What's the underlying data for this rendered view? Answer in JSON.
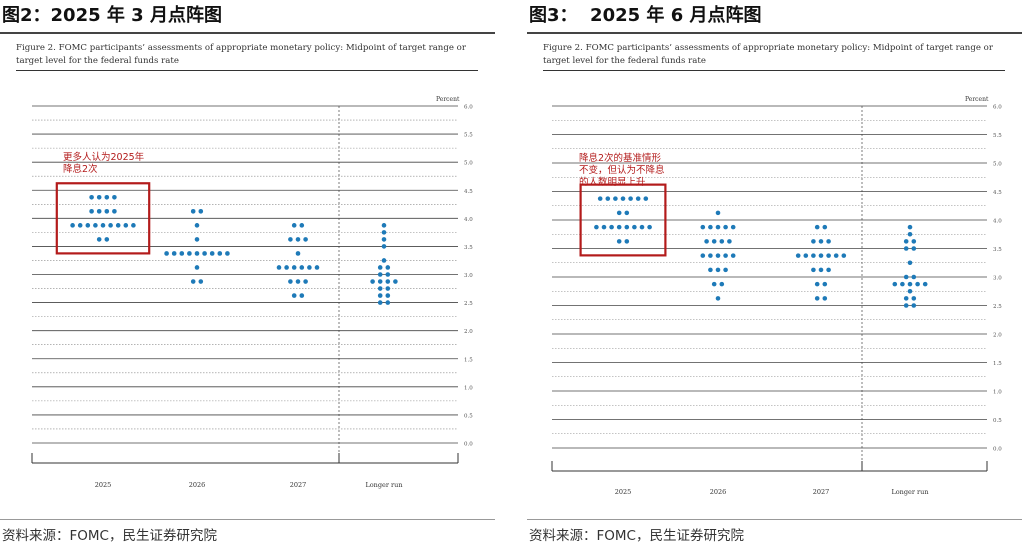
{
  "panels": [
    {
      "title": "图2：2025 年 3 月点阵图",
      "caption": "Figure 2.  FOMC participants’ assessments of appropriate monetary policy:  Midpoint of target range or target level for the federal funds rate",
      "annotation": [
        "更多人认为2025年",
        "降息2次"
      ],
      "source": "资料来源：FOMC，民生证券研究院"
    },
    {
      "title": "图3：  2025 年 6 月点阵图",
      "caption": "Figure 2.  FOMC participants’ assessments of appropriate monetary policy:  Midpoint of target range or target level for the federal funds rate",
      "annotation": [
        "降息2次的基准情形",
        "不变，但认为不降息",
        "的人数明显上升"
      ],
      "source": "资料来源：FOMC，民生证券研究院"
    }
  ],
  "chart_data": [
    {
      "type": "scatter",
      "ylabel": "Percent",
      "ylim": [
        0,
        6.0
      ],
      "yticks": [
        "0.0",
        "0.5",
        "1.0",
        "1.5",
        "2.0",
        "2.5",
        "3.0",
        "3.5",
        "4.0",
        "4.5",
        "5.0",
        "5.5",
        "6.0"
      ],
      "categories": [
        "2025",
        "2026",
        "2027",
        "Longer run"
      ],
      "dot_color": "#1e7ab8",
      "highlight": {
        "category": "2025",
        "box_color": "#b31b1b"
      },
      "series": [
        {
          "category": "2025",
          "points": [
            {
              "y": 4.375,
              "n": 4
            },
            {
              "y": 4.125,
              "n": 4
            },
            {
              "y": 3.875,
              "n": 9
            },
            {
              "y": 3.625,
              "n": 2
            }
          ]
        },
        {
          "category": "2026",
          "points": [
            {
              "y": 4.125,
              "n": 2
            },
            {
              "y": 3.875,
              "n": 1
            },
            {
              "y": 3.625,
              "n": 1
            },
            {
              "y": 3.375,
              "n": 9
            },
            {
              "y": 3.125,
              "n": 1
            },
            {
              "y": 2.875,
              "n": 2
            }
          ]
        },
        {
          "category": "2027",
          "points": [
            {
              "y": 3.875,
              "n": 2
            },
            {
              "y": 3.625,
              "n": 3
            },
            {
              "y": 3.375,
              "n": 1
            },
            {
              "y": 3.125,
              "n": 6
            },
            {
              "y": 2.875,
              "n": 3
            },
            {
              "y": 2.625,
              "n": 2
            }
          ]
        },
        {
          "category": "Longer run",
          "points": [
            {
              "y": 3.875,
              "n": 1
            },
            {
              "y": 3.75,
              "n": 1
            },
            {
              "y": 3.625,
              "n": 1
            },
            {
              "y": 3.5,
              "n": 1
            },
            {
              "y": 3.25,
              "n": 1
            },
            {
              "y": 3.125,
              "n": 2
            },
            {
              "y": 3.0,
              "n": 2
            },
            {
              "y": 2.875,
              "n": 4
            },
            {
              "y": 2.75,
              "n": 2
            },
            {
              "y": 2.625,
              "n": 2
            },
            {
              "y": 2.5,
              "n": 2
            }
          ]
        }
      ]
    },
    {
      "type": "scatter",
      "ylabel": "Percent",
      "ylim": [
        0,
        6.0
      ],
      "yticks": [
        "0.0",
        "0.5",
        "1.0",
        "1.5",
        "2.0",
        "2.5",
        "3.0",
        "3.5",
        "4.0",
        "4.5",
        "5.0",
        "5.5",
        "6.0"
      ],
      "categories": [
        "2025",
        "2026",
        "2027",
        "Longer run"
      ],
      "dot_color": "#1e7ab8",
      "highlight": {
        "category": "2025",
        "box_color": "#b31b1b"
      },
      "series": [
        {
          "category": "2025",
          "points": [
            {
              "y": 4.375,
              "n": 7
            },
            {
              "y": 4.125,
              "n": 2
            },
            {
              "y": 3.875,
              "n": 8
            },
            {
              "y": 3.625,
              "n": 2
            }
          ]
        },
        {
          "category": "2026",
          "points": [
            {
              "y": 4.125,
              "n": 1
            },
            {
              "y": 3.875,
              "n": 5
            },
            {
              "y": 3.625,
              "n": 4
            },
            {
              "y": 3.375,
              "n": 5
            },
            {
              "y": 3.125,
              "n": 3
            },
            {
              "y": 2.875,
              "n": 2
            },
            {
              "y": 2.625,
              "n": 1
            }
          ]
        },
        {
          "category": "2027",
          "points": [
            {
              "y": 3.875,
              "n": 2
            },
            {
              "y": 3.625,
              "n": 3
            },
            {
              "y": 3.375,
              "n": 7
            },
            {
              "y": 3.125,
              "n": 3
            },
            {
              "y": 2.875,
              "n": 2
            },
            {
              "y": 2.625,
              "n": 2
            }
          ]
        },
        {
          "category": "Longer run",
          "points": [
            {
              "y": 3.875,
              "n": 1
            },
            {
              "y": 3.75,
              "n": 1
            },
            {
              "y": 3.625,
              "n": 2
            },
            {
              "y": 3.5,
              "n": 2
            },
            {
              "y": 3.25,
              "n": 1
            },
            {
              "y": 3.0,
              "n": 2
            },
            {
              "y": 2.875,
              "n": 5
            },
            {
              "y": 2.75,
              "n": 1
            },
            {
              "y": 2.625,
              "n": 2
            },
            {
              "y": 2.5,
              "n": 2
            }
          ]
        }
      ]
    }
  ]
}
